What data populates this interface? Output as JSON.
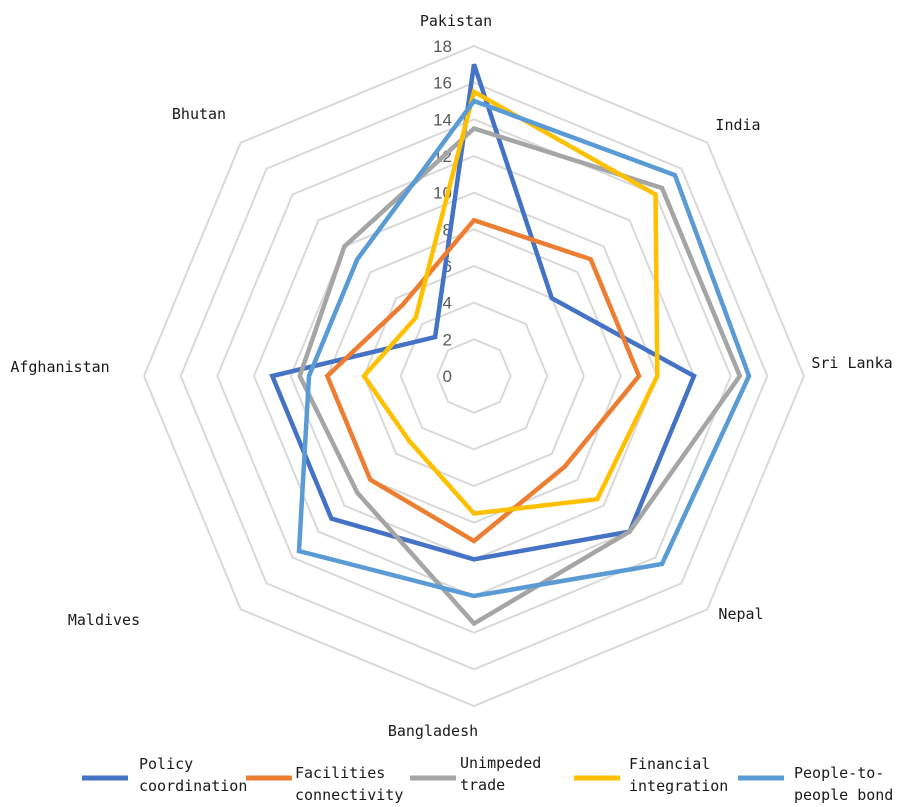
{
  "chart_data": {
    "type": "radar",
    "title": "",
    "axes": [
      "Pakistan",
      "India",
      "Sri Lanka",
      "Nepal",
      "Bangladesh",
      "Maldives",
      "Afghanistan",
      "Bhutan"
    ],
    "ticks": [
      0,
      2,
      4,
      6,
      8,
      10,
      12,
      14,
      16,
      18
    ],
    "range": [
      0,
      18
    ],
    "grid": true,
    "legend_position": "bottom",
    "series": [
      {
        "name": "Policy coordination",
        "legend_lines": [
          "Policy",
          "coordination"
        ],
        "color": "#4472c4",
        "values": [
          17,
          6,
          12,
          12,
          10,
          11,
          11,
          3
        ]
      },
      {
        "name": "Facilities connectivity",
        "legend_lines": [
          "Facilities",
          "connectivity"
        ],
        "color": "#ed7d31",
        "values": [
          8.5,
          9,
          9,
          7,
          9,
          8,
          8,
          5.5
        ]
      },
      {
        "name": "Unimpeded trade",
        "legend_lines": [
          "Unimpeded",
          "trade"
        ],
        "color": "#a5a5a5",
        "values": [
          13.5,
          14.5,
          14.5,
          12,
          13.5,
          9,
          9.5,
          10
        ]
      },
      {
        "name": "Financial integration",
        "legend_lines": [
          "Financial",
          "integration"
        ],
        "color": "#ffc000",
        "values": [
          15.5,
          14,
          10,
          9.5,
          7.5,
          5,
          6,
          4.5
        ]
      },
      {
        "name": "People-to-people bond",
        "legend_lines": [
          "People-to-",
          "people bond"
        ],
        "color": "#5b9bd5",
        "values": [
          15,
          15.5,
          15,
          14.5,
          12,
          13.5,
          9,
          9
        ]
      }
    ]
  }
}
